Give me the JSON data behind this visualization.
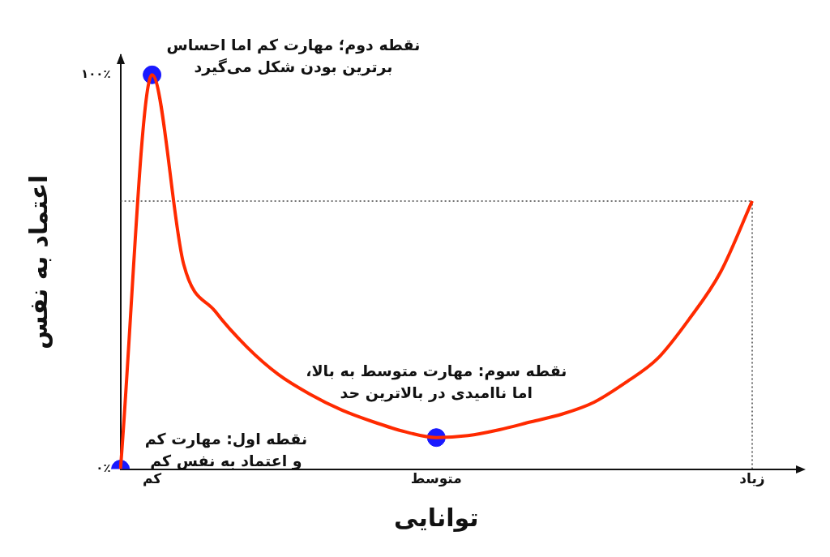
{
  "chart_data": {
    "type": "line",
    "xlabel": "توانایی",
    "ylabel": "اعتماد به نفس",
    "categories": [
      null,
      "کم",
      null,
      null,
      null,
      null,
      null,
      null,
      null,
      null,
      "متوسط",
      null,
      null,
      null,
      null,
      null,
      null,
      null,
      null,
      null,
      "زیاد"
    ],
    "ylim": [
      0,
      105
    ],
    "yticks": [
      {
        "value": 0,
        "label": "۰٪"
      },
      {
        "value": 100,
        "label": "۱۰۰٪"
      }
    ],
    "series": [
      {
        "color": "#ff2a00",
        "values": [
          0,
          100,
          52,
          40,
          31,
          24,
          19,
          15,
          12,
          9.5,
          8,
          8.5,
          10,
          12,
          14,
          17,
          22,
          28,
          38,
          50,
          68
        ]
      },
      {
        "type": "scatter",
        "marker": "circle",
        "color": "#1a1aff",
        "values": [
          0,
          100,
          null,
          null,
          null,
          null,
          null,
          null,
          null,
          null,
          8,
          null,
          null,
          null,
          null,
          null,
          null,
          null,
          null,
          null,
          null
        ]
      }
    ],
    "grid": false,
    "legend": false,
    "ref_lines": [
      {
        "axis": "y",
        "value": 68,
        "line_style": "dotted",
        "color": "#444444"
      },
      {
        "axis": "x",
        "value": "زیاد",
        "line_style": "dotted",
        "color": "#444444"
      }
    ],
    "annotations": [
      "نقطه اول: مهارت کم\nو اعتماد به نفس کم",
      {
        "text": "نقطه دوم؛ مهارت کم اما احساس\nبرترین بودن شکل می‌گیرد",
        "x": "کم",
        "y": 100
      },
      {
        "text": "نقطه سوم: مهارت متوسط به بالا،\nاما ناامیدی در بالاترین حد",
        "x": "متوسط",
        "y": 8
      }
    ]
  }
}
